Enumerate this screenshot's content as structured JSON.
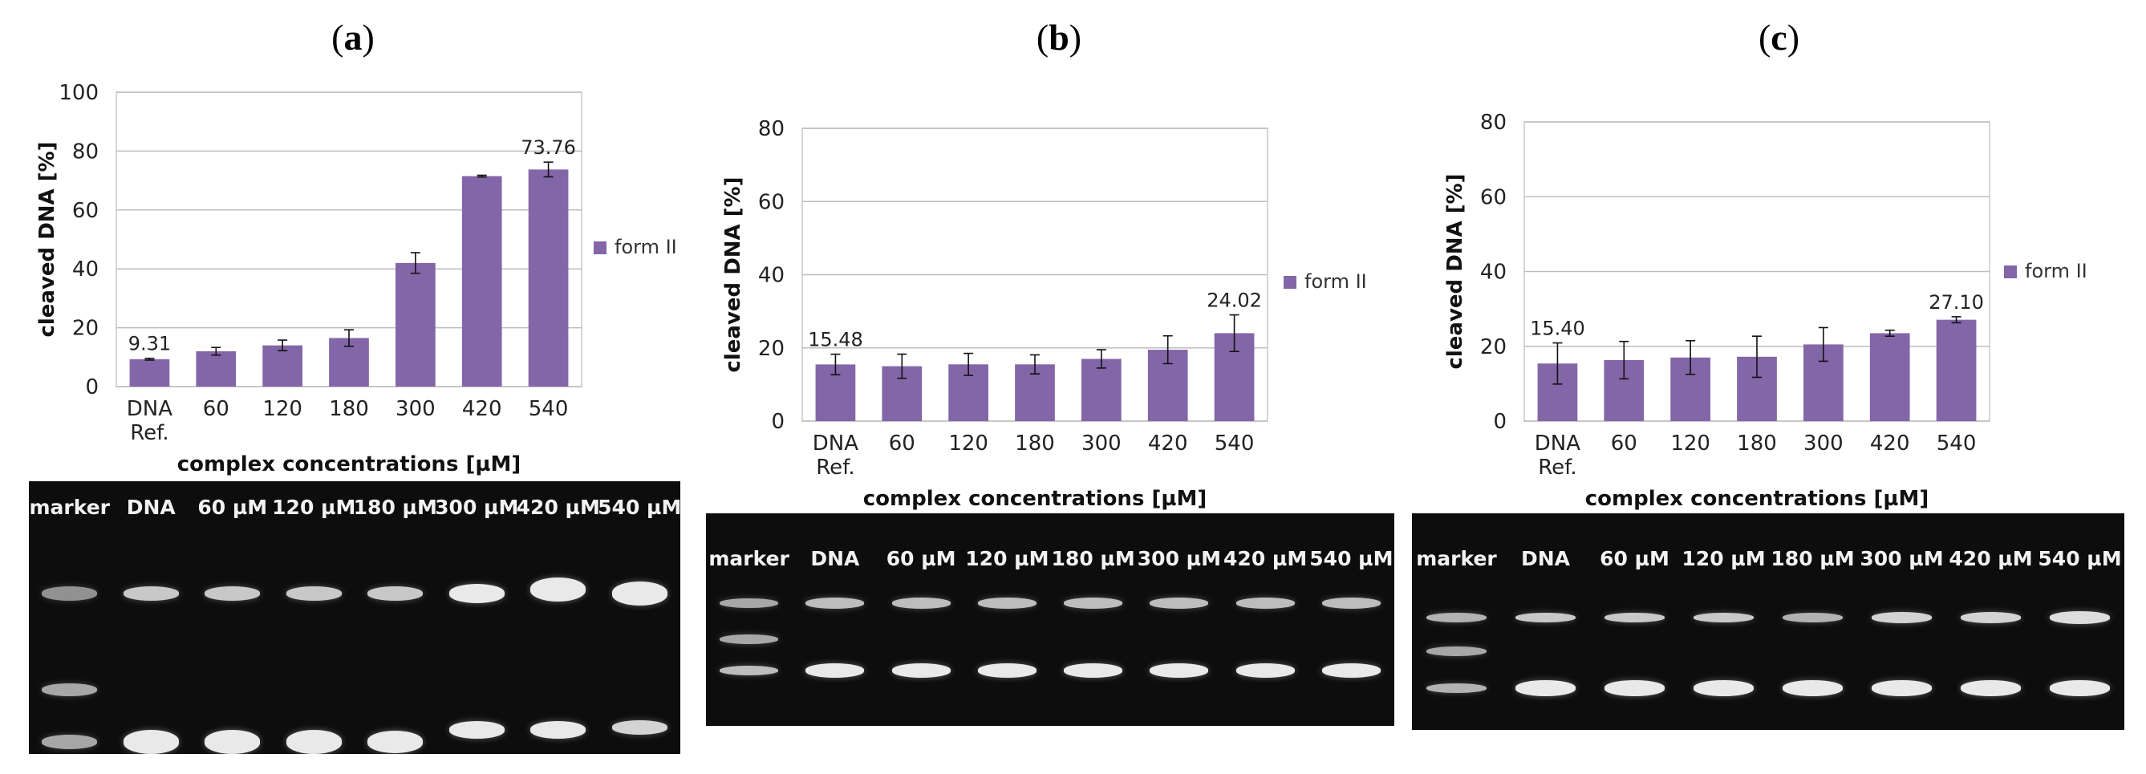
{
  "colors": {
    "bar": "#8366a8",
    "grid": "#bdbdbd",
    "gel_bg": "#0d0d0d",
    "band": "#ececec"
  },
  "chart_data": [
    {
      "id": "a",
      "type": "bar",
      "panel_label": "a",
      "categories": [
        "DNA Ref.",
        "60",
        "120",
        "180",
        "300",
        "420",
        "540"
      ],
      "series": [
        {
          "name": "form II",
          "values": [
            9.31,
            12,
            14,
            16.5,
            42,
            71.5,
            73.76
          ],
          "errors": [
            0.3,
            1.3,
            1.8,
            2.8,
            3.5,
            0.3,
            2.5
          ]
        }
      ],
      "data_labels": [
        "9.31",
        "",
        "",
        "",
        "",
        "",
        "73.76"
      ],
      "title": "",
      "xlabel": "complex concentrations [µM]",
      "ylabel": "cleaved DNA [%]",
      "ylim": [
        0,
        100
      ],
      "yticks": [
        0,
        20,
        40,
        60,
        80,
        100
      ],
      "legend": "right",
      "grid": true
    },
    {
      "id": "b",
      "type": "bar",
      "panel_label": "b",
      "categories": [
        "DNA Ref.",
        "60",
        "120",
        "180",
        "300",
        "420",
        "540"
      ],
      "series": [
        {
          "name": "form II",
          "values": [
            15.48,
            15,
            15.5,
            15.5,
            17,
            19.5,
            24.02
          ],
          "errors": [
            2.8,
            3.3,
            3,
            2.6,
            2.5,
            3.8,
            5
          ]
        }
      ],
      "data_labels": [
        "15.48",
        "",
        "",
        "",
        "",
        "",
        "24.02"
      ],
      "title": "",
      "xlabel": "complex concentrations [µM]",
      "ylabel": "cleaved DNA [%]",
      "ylim": [
        0,
        80
      ],
      "yticks": [
        0,
        20,
        40,
        60,
        80
      ],
      "legend": "right",
      "grid": true
    },
    {
      "id": "c",
      "type": "bar",
      "panel_label": "c",
      "categories": [
        "DNA Ref.",
        "60",
        "120",
        "180",
        "300",
        "420",
        "540"
      ],
      "series": [
        {
          "name": "form II",
          "values": [
            15.4,
            16.3,
            17,
            17.2,
            20.5,
            23.5,
            27.1
          ],
          "errors": [
            5.5,
            5,
            4.5,
            5.5,
            4.5,
            0.8,
            0.8
          ]
        }
      ],
      "data_labels": [
        "15.40",
        "",
        "",
        "",
        "",
        "",
        "27.10"
      ],
      "title": "",
      "xlabel": "complex concentrations [µM]",
      "ylabel": "cleaved DNA [%]",
      "ylim": [
        0,
        80
      ],
      "yticks": [
        0,
        20,
        40,
        60,
        80
      ],
      "legend": "right",
      "grid": true
    }
  ],
  "gels": [
    {
      "id": "a",
      "lane_labels": [
        "marker",
        "DNA",
        "60 µM",
        "120 µM",
        "180 µM",
        "300 µM",
        "420 µM",
        "540 µM"
      ]
    },
    {
      "id": "b",
      "lane_labels": [
        "marker",
        "DNA",
        "60 µM",
        "120 µM",
        "180 µM",
        "300 µM",
        "420 µM",
        "540 µM"
      ]
    },
    {
      "id": "c",
      "lane_labels": [
        "marker",
        "DNA",
        "60 µM",
        "120 µM",
        "180 µM",
        "300 µM",
        "420 µM",
        "540 µM"
      ]
    }
  ]
}
